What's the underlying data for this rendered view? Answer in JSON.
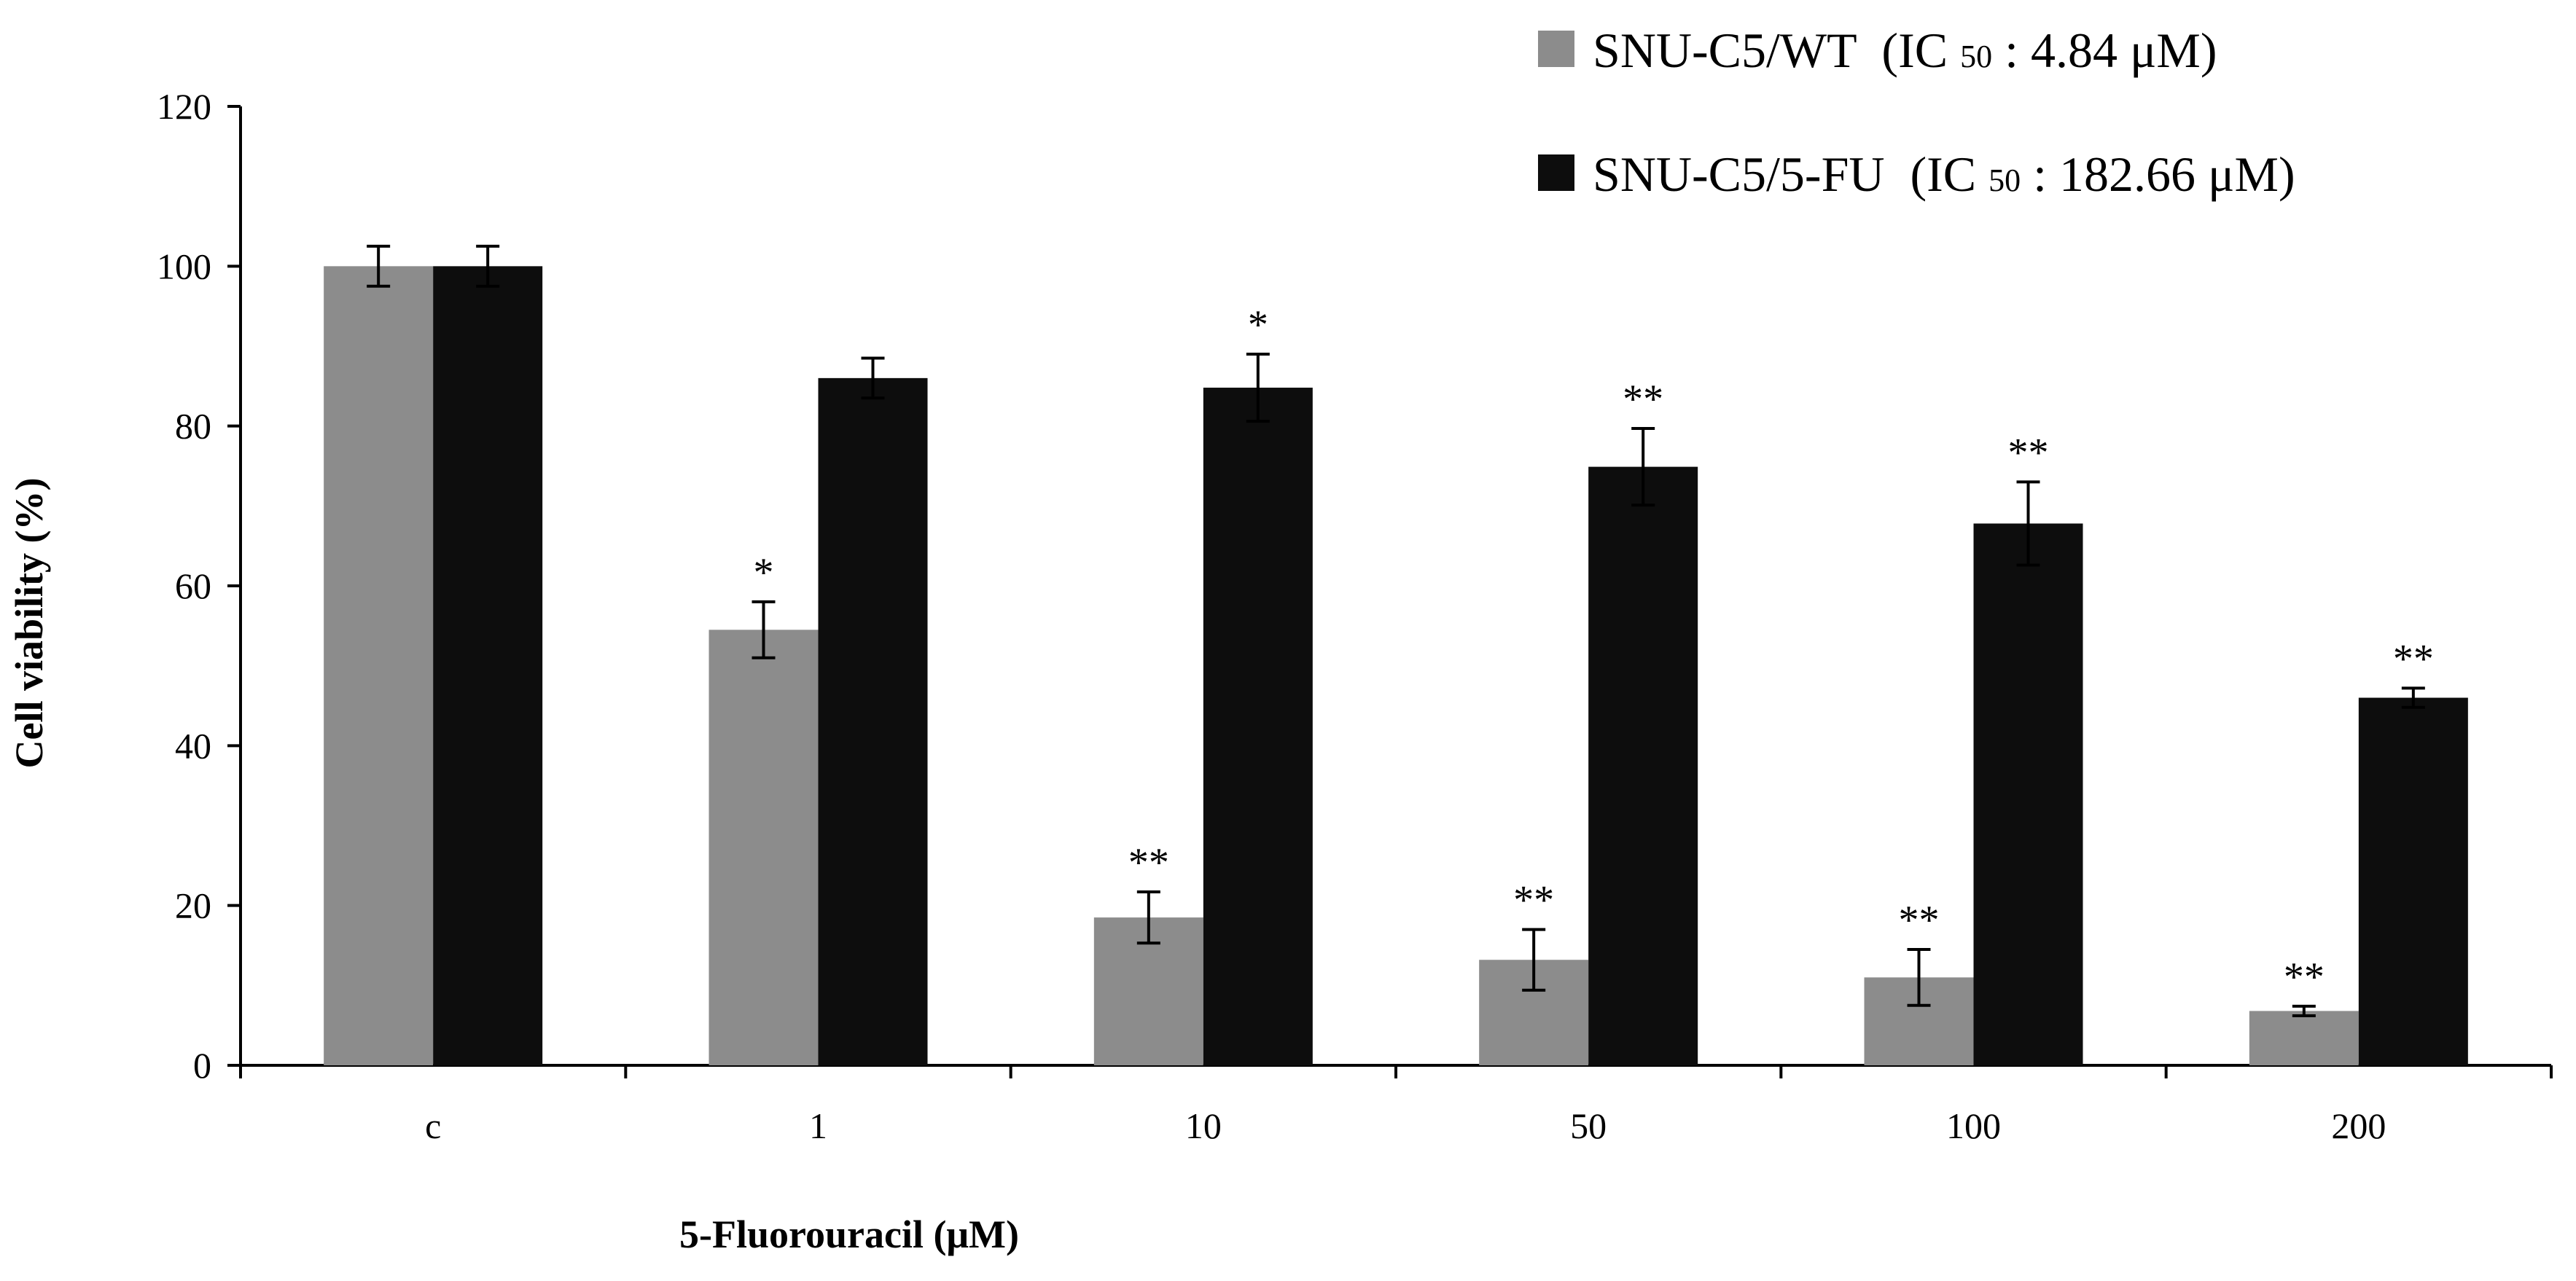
{
  "chart_data": {
    "type": "bar",
    "title": "",
    "xlabel": "5-Fluorouracil (μM)",
    "ylabel": "Cell viability  (%)",
    "ylim": [
      0,
      120
    ],
    "yticks": [
      0,
      20,
      40,
      60,
      80,
      100,
      120
    ],
    "grid": false,
    "legend_position": "top-right",
    "categories": [
      "c",
      "1",
      "10",
      "50",
      "100",
      "200"
    ],
    "series": [
      {
        "name": "SNU-C5/WT",
        "legend_label": "SNU-C5/WT",
        "legend_ic50": "(IC",
        "legend_sub": "50",
        "legend_value": " : 4.84 μM)",
        "color": "#8c8c8c",
        "values": [
          100,
          54.5,
          18.5,
          13.2,
          11,
          6.8
        ],
        "errors": [
          2.5,
          3.5,
          3.2,
          3.8,
          3.5,
          0.6
        ],
        "significance": [
          "",
          "*",
          "**",
          "**",
          "**",
          "**"
        ]
      },
      {
        "name": "SNU-C5/5-FU",
        "legend_label": "SNU-C5/5-FU",
        "legend_ic50": "(IC",
        "legend_sub": "50",
        "legend_value": " : 182.66 μM)",
        "color": "#0d0d0d",
        "values": [
          100,
          86,
          84.8,
          74.9,
          67.8,
          46
        ],
        "errors": [
          2.5,
          2.5,
          4.2,
          4.8,
          5.2,
          1.2
        ],
        "significance": [
          "",
          "",
          "*",
          "**",
          "**",
          "**"
        ]
      }
    ]
  }
}
